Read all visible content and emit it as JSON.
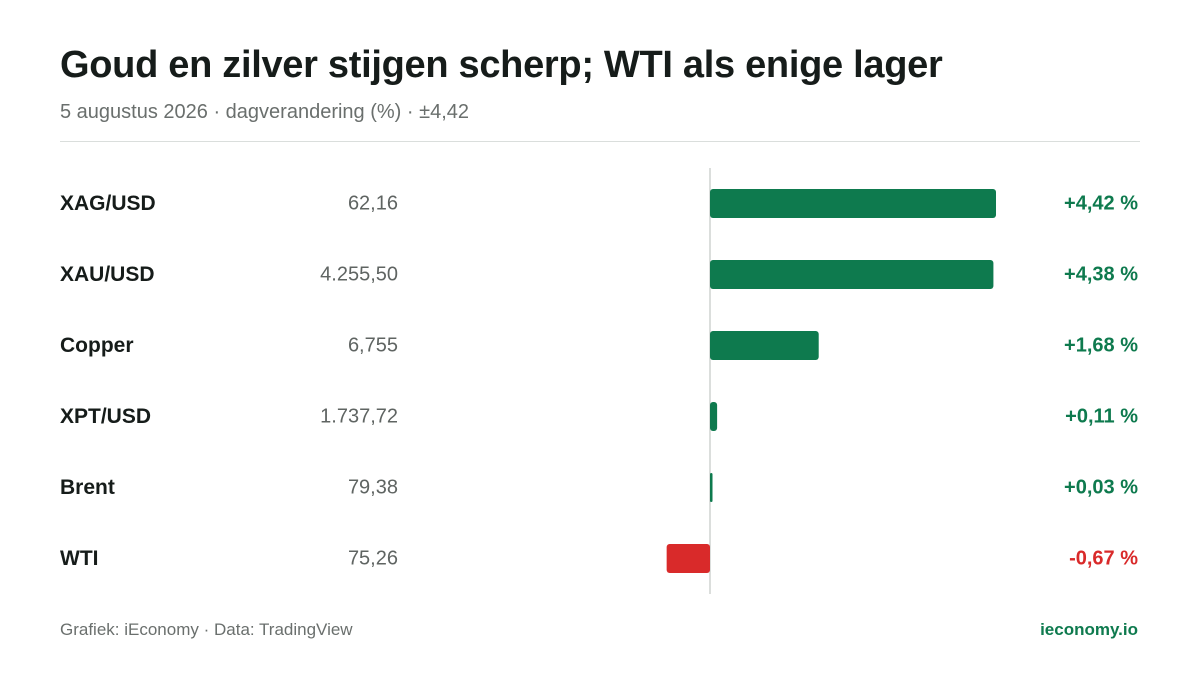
{
  "header": {
    "title": "Goud en zilver stijgen scherp; WTI als enige lager",
    "subtitle": "5 augustus 2026 · dagverandering (%) · ±4,42"
  },
  "footer": {
    "source": "Grafiek: iEconomy · Data: TradingView",
    "brand": "ieconomy.io"
  },
  "colors": {
    "positive": "#0e7a4e",
    "negative": "#d92a2a",
    "label": "#161c1a",
    "price": "#5f6462",
    "axis": "#cfd3d1"
  },
  "chart_data": {
    "type": "bar",
    "orientation": "horizontal",
    "categories": [
      "XAG/USD",
      "XAU/USD",
      "Copper",
      "XPT/USD",
      "Brent",
      "WTI"
    ],
    "prices": [
      "62,16",
      "4.255,50",
      "6,755",
      "1.737,72",
      "79,38",
      "75,26"
    ],
    "values": [
      4.42,
      4.38,
      1.68,
      0.11,
      0.03,
      -0.67
    ],
    "value_labels": [
      "+4,42 %",
      "+4,38 %",
      "+1,68 %",
      "+0,11 %",
      "+0,03 %",
      "-0,67 %"
    ],
    "xlim": [
      -4.42,
      4.42
    ],
    "grid": false,
    "legend": "none"
  }
}
